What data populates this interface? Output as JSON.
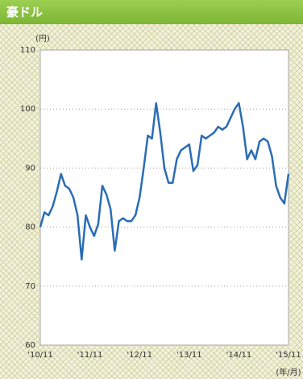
{
  "chart_data": {
    "type": "line",
    "title": "豪ドル",
    "y_unit": "(円)",
    "x_unit": "(年/月)",
    "categories": [
      "'10/11",
      null,
      null,
      null,
      null,
      null,
      null,
      null,
      null,
      null,
      null,
      null,
      "'11/11",
      null,
      null,
      null,
      null,
      null,
      null,
      null,
      null,
      null,
      null,
      null,
      "'12/11",
      null,
      null,
      null,
      null,
      null,
      null,
      null,
      null,
      null,
      null,
      null,
      "'13/11",
      null,
      null,
      null,
      null,
      null,
      null,
      null,
      null,
      null,
      null,
      null,
      "'14/11",
      null,
      null,
      null,
      null,
      null,
      null,
      null,
      null,
      null,
      null,
      null,
      "'15/11"
    ],
    "series": [
      {
        "name": "豪ドル",
        "color": "#2a6db5",
        "values": [
          80,
          82.5,
          82,
          83.5,
          86,
          89,
          87,
          86.5,
          85,
          82,
          74.5,
          82,
          80,
          78.5,
          80.5,
          87,
          85.5,
          83,
          76,
          81,
          81.5,
          81,
          81,
          82,
          85,
          90,
          95.5,
          95,
          101,
          96,
          90,
          87.5,
          87.5,
          91.5,
          93,
          93.5,
          94,
          89.5,
          90.5,
          95.5,
          95,
          95.5,
          96,
          97,
          96.5,
          97,
          98.5,
          100,
          101,
          97,
          91.5,
          93,
          91.5,
          94.5,
          95,
          94.5,
          92,
          87,
          85,
          84,
          89
        ]
      }
    ],
    "ylim": [
      60,
      110
    ],
    "yticks": [
      60,
      70,
      80,
      90,
      100,
      110
    ],
    "grid": true
  }
}
